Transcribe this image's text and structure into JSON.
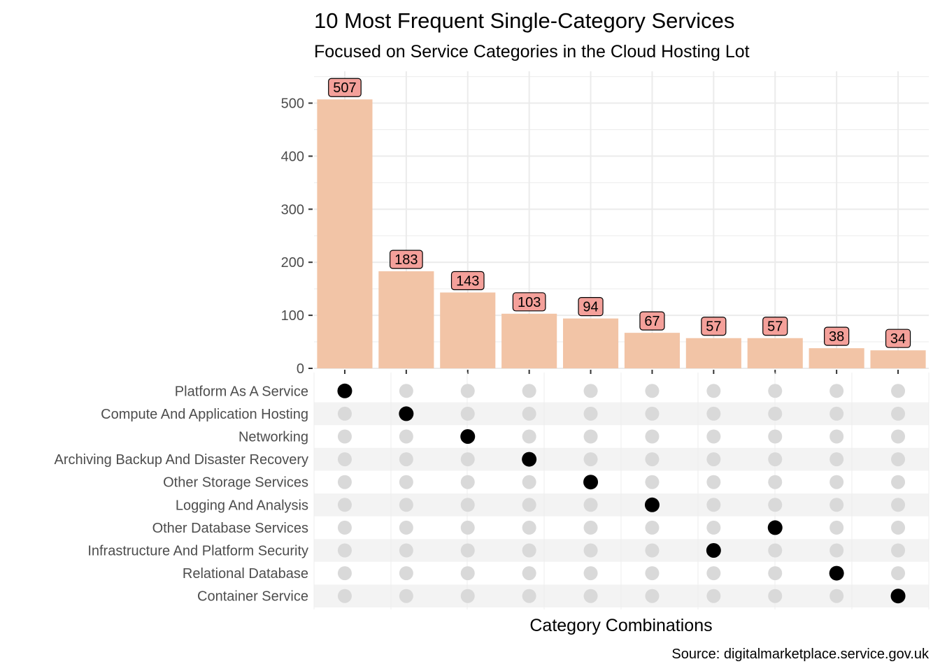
{
  "chart_data": {
    "type": "bar",
    "title": "10 Most Frequent Single-Category Services",
    "subtitle": "Focused on Service Categories in the Cloud Hosting Lot",
    "xlabel": "Category Combinations",
    "ylabel": "",
    "caption": "Source: digitalmarketplace.service.gov.uk",
    "ylim": [
      0,
      560
    ],
    "yticks": [
      "0",
      "100",
      "200",
      "300",
      "400",
      "500"
    ],
    "grid": true,
    "values": [
      507,
      183,
      143,
      103,
      94,
      67,
      57,
      57,
      38,
      34
    ],
    "value_labels": [
      "507",
      "183",
      "143",
      "103",
      "94",
      "67",
      "57",
      "57",
      "38",
      "34"
    ],
    "categories": [
      "Platform As A Service",
      "Compute And Application Hosting",
      "Networking",
      "Archiving Backup And Disaster Recovery",
      "Other Storage Services",
      "Logging And Analysis",
      "Other Database Services",
      "Infrastructure And Platform Security",
      "Relational Database",
      "Container Service"
    ],
    "membership": [
      0,
      1,
      2,
      3,
      4,
      5,
      7,
      6,
      8,
      9
    ],
    "colors": {
      "bar": "#F2C4A6",
      "label_fill": "#F4A09A",
      "dot_active": "#000000",
      "dot_inactive": "#D9D9D9",
      "stripe": "#F3F3F3",
      "grid": "#EBEBEB"
    }
  }
}
